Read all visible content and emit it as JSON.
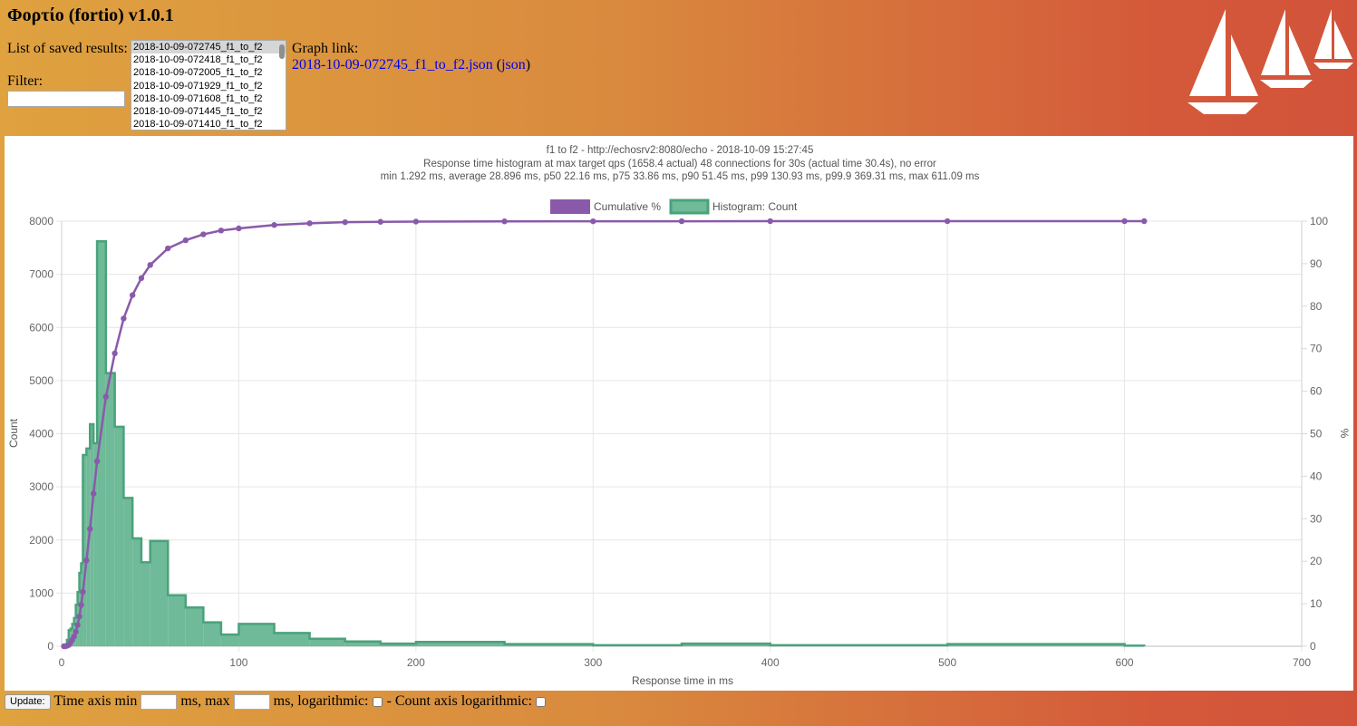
{
  "header": {
    "title": "Φορτίο (fortio) v1.0.1",
    "saved_results_label": "List of saved results:",
    "filter_label": "Filter:",
    "filter_value": "",
    "saved_results": [
      "2018-10-09-072745_f1_to_f2",
      "2018-10-09-072418_f1_to_f2",
      "2018-10-09-072005_f1_to_f2",
      "2018-10-09-071929_f1_to_f2",
      "2018-10-09-071608_f1_to_f2",
      "2018-10-09-071445_f1_to_f2",
      "2018-10-09-071410_f1_to_f2"
    ],
    "graph_link_label": "Graph link:",
    "graph_link_text": "2018-10-09-072745_f1_to_f2.json",
    "json_link_text": "json"
  },
  "chart_data": {
    "type": "bar",
    "title": [
      "f1 to f2 - http://echosrv2:8080/echo - 2018-10-09 15:27:45",
      "Response time histogram at max target qps (1658.4 actual) 48 connections for 30s (actual time 30.4s), no error",
      "min 1.292 ms, average 28.896 ms, p50 22.16 ms, p75 33.86 ms, p90 51.45 ms, p99 130.93 ms, p99.9 369.31 ms, max 611.09 ms"
    ],
    "xlabel": "Response time in ms",
    "ylabel": "Count",
    "y2label": "%",
    "xlim": [
      0,
      700
    ],
    "ylim": [
      0,
      8000
    ],
    "y2lim": [
      0,
      100
    ],
    "xticks": [
      0,
      100,
      200,
      300,
      400,
      500,
      600,
      700
    ],
    "yticks": [
      0,
      1000,
      2000,
      3000,
      4000,
      5000,
      6000,
      7000,
      8000
    ],
    "y2ticks": [
      0,
      10,
      20,
      30,
      40,
      50,
      60,
      70,
      80,
      90,
      100
    ],
    "grid": true,
    "legend_position": "top",
    "legend": [
      "Cumulative %",
      "Histogram: Count"
    ],
    "colors": {
      "cumulative": "#8a5aaa",
      "histogram_fill": "#6fba98",
      "histogram_stroke": "#4aa27b"
    },
    "histogram": [
      {
        "x0": 1.292,
        "x1": 2,
        "count": 10
      },
      {
        "x0": 2,
        "x1": 3,
        "count": 30
      },
      {
        "x0": 3,
        "x1": 4,
        "count": 120
      },
      {
        "x0": 4,
        "x1": 5,
        "count": 300
      },
      {
        "x0": 5,
        "x1": 6,
        "count": 330
      },
      {
        "x0": 6,
        "x1": 7,
        "count": 420
      },
      {
        "x0": 7,
        "x1": 8,
        "count": 530
      },
      {
        "x0": 8,
        "x1": 9,
        "count": 780
      },
      {
        "x0": 9,
        "x1": 10,
        "count": 1020
      },
      {
        "x0": 10,
        "x1": 11,
        "count": 1380
      },
      {
        "x0": 11,
        "x1": 12,
        "count": 1560
      },
      {
        "x0": 12,
        "x1": 14,
        "count": 3600
      },
      {
        "x0": 14,
        "x1": 16,
        "count": 3720
      },
      {
        "x0": 16,
        "x1": 18,
        "count": 4180
      },
      {
        "x0": 18,
        "x1": 20,
        "count": 3820
      },
      {
        "x0": 20,
        "x1": 25,
        "count": 7620
      },
      {
        "x0": 25,
        "x1": 30,
        "count": 5140
      },
      {
        "x0": 30,
        "x1": 35,
        "count": 4130
      },
      {
        "x0": 35,
        "x1": 40,
        "count": 2790
      },
      {
        "x0": 40,
        "x1": 45,
        "count": 2030
      },
      {
        "x0": 45,
        "x1": 50,
        "count": 1580
      },
      {
        "x0": 50,
        "x1": 60,
        "count": 1980
      },
      {
        "x0": 60,
        "x1": 70,
        "count": 960
      },
      {
        "x0": 70,
        "x1": 80,
        "count": 730
      },
      {
        "x0": 80,
        "x1": 90,
        "count": 450
      },
      {
        "x0": 90,
        "x1": 100,
        "count": 220
      },
      {
        "x0": 100,
        "x1": 120,
        "count": 420
      },
      {
        "x0": 120,
        "x1": 140,
        "count": 250
      },
      {
        "x0": 140,
        "x1": 160,
        "count": 140
      },
      {
        "x0": 160,
        "x1": 180,
        "count": 90
      },
      {
        "x0": 180,
        "x1": 200,
        "count": 50
      },
      {
        "x0": 200,
        "x1": 250,
        "count": 80
      },
      {
        "x0": 250,
        "x1": 300,
        "count": 40
      },
      {
        "x0": 300,
        "x1": 350,
        "count": 20
      },
      {
        "x0": 350,
        "x1": 400,
        "count": 50
      },
      {
        "x0": 400,
        "x1": 500,
        "count": 20
      },
      {
        "x0": 500,
        "x1": 600,
        "count": 40
      },
      {
        "x0": 600,
        "x1": 611.09,
        "count": 10
      }
    ],
    "cumulative": [
      {
        "x": 1.292,
        "y": 0.0
      },
      {
        "x": 2,
        "y": 0.0
      },
      {
        "x": 3,
        "y": 0.1
      },
      {
        "x": 4,
        "y": 0.3
      },
      {
        "x": 5,
        "y": 0.8
      },
      {
        "x": 6,
        "y": 1.5
      },
      {
        "x": 7,
        "y": 2.3
      },
      {
        "x": 8,
        "y": 3.4
      },
      {
        "x": 9,
        "y": 5.0
      },
      {
        "x": 10,
        "y": 7.0
      },
      {
        "x": 11,
        "y": 9.7
      },
      {
        "x": 12,
        "y": 12.8
      },
      {
        "x": 14,
        "y": 20.2
      },
      {
        "x": 16,
        "y": 27.6
      },
      {
        "x": 18,
        "y": 35.9
      },
      {
        "x": 20,
        "y": 43.5
      },
      {
        "x": 25,
        "y": 58.7
      },
      {
        "x": 30,
        "y": 68.9
      },
      {
        "x": 35,
        "y": 77.1
      },
      {
        "x": 40,
        "y": 82.6
      },
      {
        "x": 45,
        "y": 86.6
      },
      {
        "x": 50,
        "y": 89.7
      },
      {
        "x": 60,
        "y": 93.6
      },
      {
        "x": 70,
        "y": 95.5
      },
      {
        "x": 80,
        "y": 96.9
      },
      {
        "x": 90,
        "y": 97.8
      },
      {
        "x": 100,
        "y": 98.3
      },
      {
        "x": 120,
        "y": 99.1
      },
      {
        "x": 140,
        "y": 99.5
      },
      {
        "x": 160,
        "y": 99.75
      },
      {
        "x": 180,
        "y": 99.85
      },
      {
        "x": 200,
        "y": 99.9
      },
      {
        "x": 250,
        "y": 99.95
      },
      {
        "x": 300,
        "y": 99.97
      },
      {
        "x": 350,
        "y": 99.98
      },
      {
        "x": 400,
        "y": 99.99
      },
      {
        "x": 500,
        "y": 99.995
      },
      {
        "x": 600,
        "y": 99.999
      },
      {
        "x": 611.09,
        "y": 100
      }
    ],
    "cumulative_end": {
      "x": 611.09,
      "y": 100
    }
  },
  "controls": {
    "update_label": "Update:",
    "time_axis_min_label": "Time axis min",
    "ms_max_label": "ms, max",
    "ms_log_label": "ms, logarithmic:",
    "count_axis_log_label": "- Count axis logarithmic:",
    "time_min_value": "",
    "time_max_value": ""
  }
}
